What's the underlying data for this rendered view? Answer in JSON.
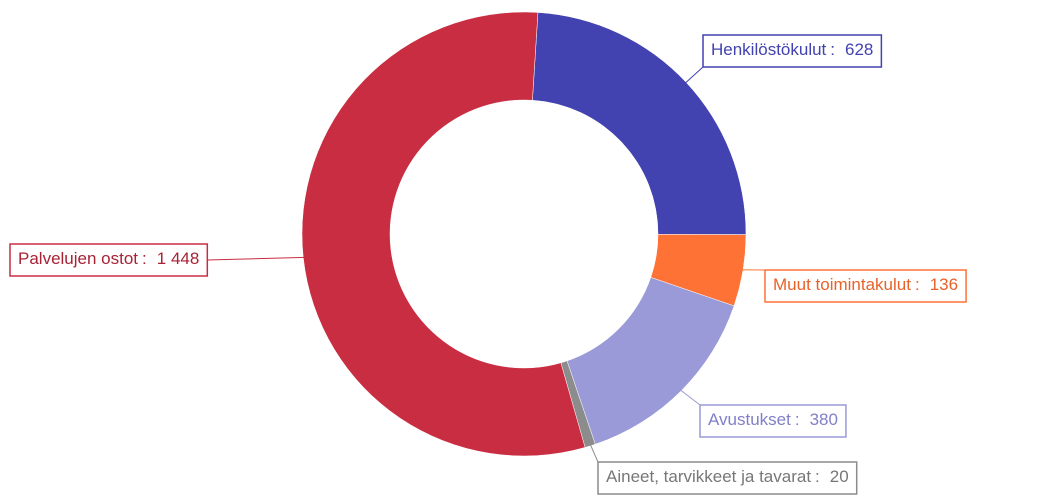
{
  "chart_data": {
    "type": "donut",
    "categories": [
      "Henkilöstökulut",
      "Muut toimintakulut",
      "Avustukset",
      "Aineet, tarvikkeet ja tavarat",
      "Palvelujen ostot"
    ],
    "values": [
      628,
      136,
      380,
      20,
      1448
    ],
    "value_labels": [
      "628",
      "136",
      "380",
      "20",
      "1 448"
    ],
    "label_separator": ":",
    "colors": [
      "#4242b0",
      "#ff7236",
      "#9a9ad8",
      "#8c8c8c",
      "#c92d42"
    ]
  }
}
